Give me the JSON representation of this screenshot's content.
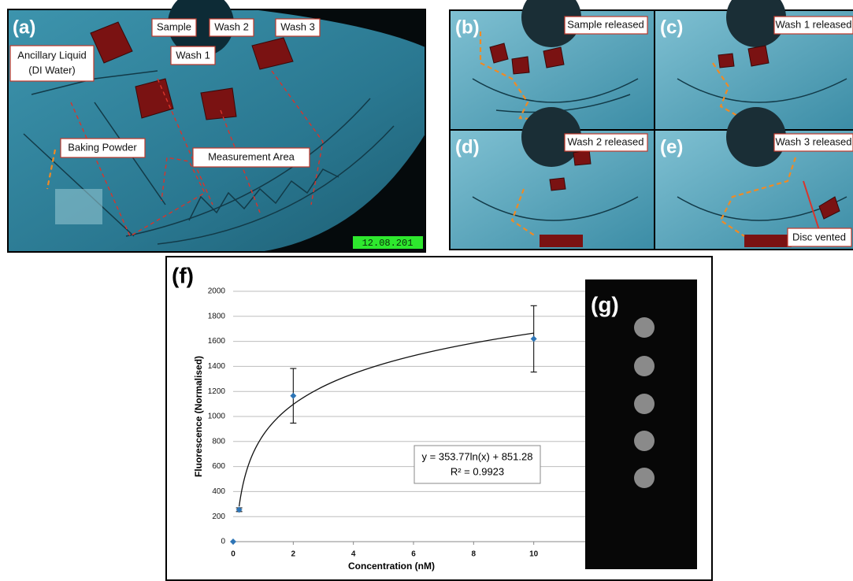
{
  "panel_a": {
    "label": "(a)",
    "sample": "Sample",
    "ancillary_liquid": [
      "Ancillary Liquid",
      "(DI Water)"
    ],
    "wash_1": "Wash 1",
    "wash_2": "Wash 2",
    "wash_3": "Wash 3",
    "baking_powder": "Baking Powder",
    "measurement_area": "Measurement Area",
    "timestamp": "12.08.201"
  },
  "panel_b": {
    "label": "(b)",
    "caption": "Sample released"
  },
  "panel_c": {
    "label": "(c)",
    "caption": "Wash 1 released"
  },
  "panel_d": {
    "label": "(d)",
    "caption": "Wash 2 released"
  },
  "panel_e": {
    "label": "(e)",
    "caption": "Wash 3 released",
    "note": "Disc vented"
  },
  "panel_g": {
    "label": "(g)"
  },
  "chart_data": {
    "type": "scatter",
    "label": "(f)",
    "x_label": "Concentration (nM)",
    "y_label": "Fluorescence (Normalised)",
    "x": [
      0,
      0.2,
      2,
      10
    ],
    "series": [
      {
        "color": "#2e75b6",
        "values": [
          0,
          255,
          1165,
          1620
        ],
        "errors": [
          null,
          15,
          218,
          265
        ]
      }
    ],
    "xlim": [
      0,
      12
    ],
    "xticks": [
      0,
      2,
      4,
      6,
      8,
      10
    ],
    "ylim": [
      0,
      2000
    ],
    "yticks": [
      0,
      200,
      400,
      600,
      800,
      1000,
      1200,
      1400,
      1600,
      1800,
      2000
    ],
    "grid": true,
    "trendline": {
      "slope": 353.77,
      "intercept": 851.28,
      "equation": "y = 353.77ln(x) + 851.28",
      "r2": "R² = 0.9923"
    }
  }
}
